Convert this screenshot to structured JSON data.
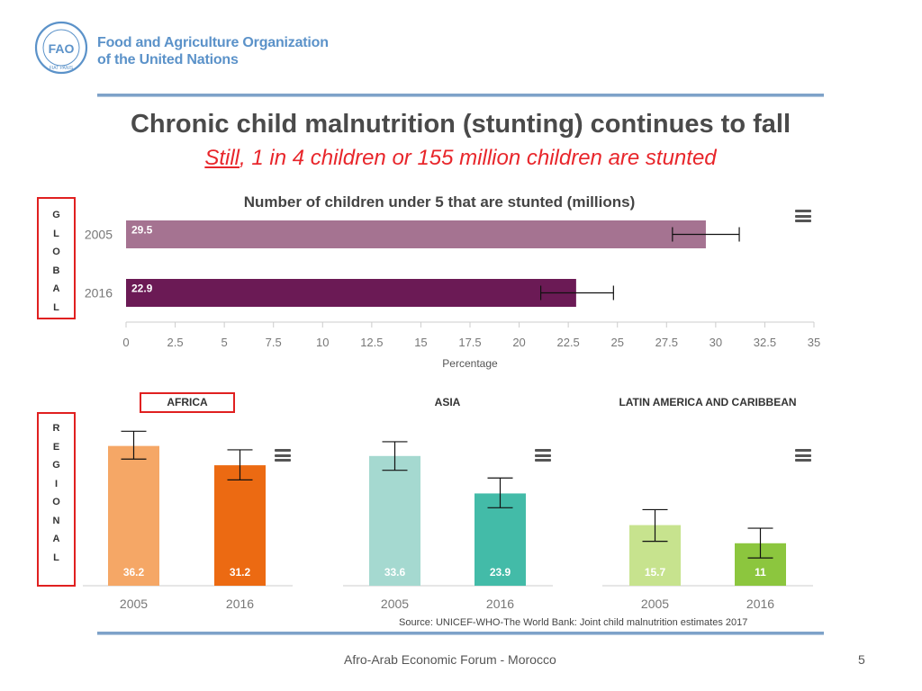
{
  "header": {
    "org_line1": "Food and Agriculture Organization",
    "org_line2": "of the United Nations",
    "logo_top": "FAO",
    "logo_bottom": "FIAT PANIS"
  },
  "title": "Chronic child malnutrition (stunting) continues to fall",
  "subtitle": {
    "underlined": "Still",
    "rest": ", 1 in 4 children or 155 million children are stunted"
  },
  "labels": {
    "global_letters": [
      "G",
      "L",
      "O",
      "B",
      "A",
      "L"
    ],
    "regional_letters": [
      "R",
      "E",
      "G",
      "I",
      "O",
      "N",
      "A",
      "L"
    ]
  },
  "chart_data": [
    {
      "type": "bar",
      "orientation": "horizontal",
      "title": "Number of children under 5 that are stunted (millions)",
      "categories": [
        "2005",
        "2016"
      ],
      "values": [
        29.5,
        22.9
      ],
      "value_labels": [
        "29.5",
        "22.9"
      ],
      "error_low": [
        27.8,
        21.1
      ],
      "error_high": [
        31.2,
        24.8
      ],
      "colors": [
        "#a57391",
        "#6b1a55"
      ],
      "xlabel": "Percentage",
      "xlim": [
        0,
        35
      ],
      "xticks": [
        "0",
        "2.5",
        "5",
        "7.5",
        "10",
        "12.5",
        "15",
        "17.5",
        "20",
        "22.5",
        "25",
        "27.5",
        "30",
        "32.5",
        "35"
      ]
    },
    {
      "type": "bar",
      "title": "AFRICA",
      "categories": [
        "2005",
        "2016"
      ],
      "values": [
        36.2,
        31.2
      ],
      "value_labels": [
        "36.2",
        "31.2"
      ],
      "error_low": [
        32.8,
        27.4
      ],
      "error_high": [
        40.0,
        35.2
      ],
      "colors": [
        "#f5a766",
        "#ec6a12"
      ],
      "ylim": [
        0,
        48
      ]
    },
    {
      "type": "bar",
      "title": "ASIA",
      "categories": [
        "2005",
        "2016"
      ],
      "values": [
        33.6,
        23.9
      ],
      "value_labels": [
        "33.6",
        "23.9"
      ],
      "error_low": [
        29.9,
        20.2
      ],
      "error_high": [
        37.3,
        27.9
      ],
      "colors": [
        "#a5d9d0",
        "#43bba8"
      ],
      "ylim": [
        0,
        48
      ]
    },
    {
      "type": "bar",
      "title": "LATIN AMERICA AND CARIBBEAN",
      "categories": [
        "2005",
        "2016"
      ],
      "values": [
        15.7,
        11
      ],
      "value_labels": [
        "15.7",
        "11"
      ],
      "error_low": [
        11.5,
        7.2
      ],
      "error_high": [
        19.7,
        14.9
      ],
      "colors": [
        "#c7e38e",
        "#8cc63e"
      ],
      "ylim": [
        0,
        48
      ]
    }
  ],
  "source": "Source: UNICEF-WHO-The World Bank: Joint child malnutrition estimates 2017",
  "footer": "Afro-Arab Economic Forum - Morocco",
  "page_number": "5"
}
